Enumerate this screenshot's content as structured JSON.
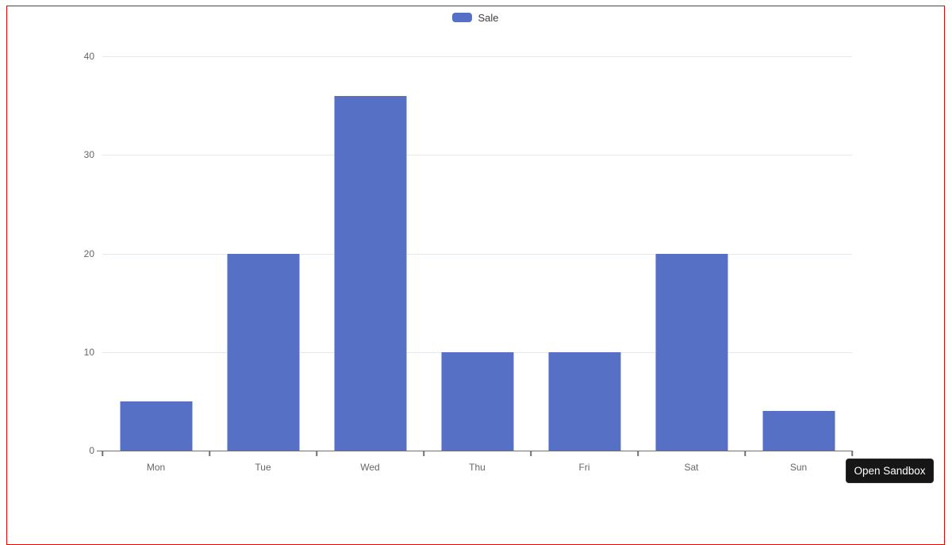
{
  "chart_data": {
    "type": "bar",
    "title": "",
    "xlabel": "",
    "ylabel": "",
    "categories": [
      "Mon",
      "Tue",
      "Wed",
      "Thu",
      "Fri",
      "Sat",
      "Sun"
    ],
    "series": [
      {
        "name": "Sale",
        "values": [
          5,
          20,
          36,
          10,
          10,
          20,
          4
        ]
      }
    ],
    "ylim": [
      0,
      40
    ],
    "yticks": [
      0,
      10,
      20,
      30,
      40
    ],
    "grid": true,
    "legend_position": "top"
  },
  "sandbox": {
    "button_label": "Open Sandbox"
  },
  "colors": {
    "bar": "#5670c6",
    "bar_edge": "#aab7e3",
    "grid_line": "#e4e9ee",
    "axis_line": "#707070",
    "tick_text": "#666666",
    "legend_text": "#3d3d3d",
    "page_border": "#f00000",
    "button_bg": "#161616",
    "button_text": "#ffffff"
  }
}
